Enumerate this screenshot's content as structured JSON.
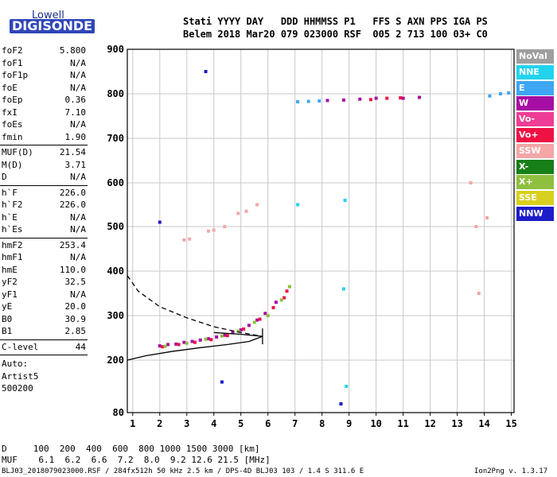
{
  "logo": {
    "top": "Lowell",
    "bottom": "DIGISONDE"
  },
  "header": {
    "line1": "Stati YYYY DAY   DDD HHMMSS P1   FFS S AXN PPS IGA PS",
    "line2": "Belem 2018 Mar20 079 023000 RSF  005 2 713 100 03+ C0"
  },
  "params": {
    "group1": [
      {
        "label": "foF2",
        "value": "5.800"
      },
      {
        "label": "foF1",
        "value": "N/A"
      },
      {
        "label": "foF1p",
        "value": "N/A"
      },
      {
        "label": "foE",
        "value": "N/A"
      },
      {
        "label": "foEp",
        "value": "0.36"
      },
      {
        "label": "fxI",
        "value": "7.10"
      },
      {
        "label": "foEs",
        "value": "N/A"
      },
      {
        "label": "fmin",
        "value": "1.90"
      }
    ],
    "group2": [
      {
        "label": "MUF(D)",
        "value": "21.54"
      },
      {
        "label": "M(D)",
        "value": "3.71"
      },
      {
        "label": "D",
        "value": "N/A"
      }
    ],
    "group3": [
      {
        "label": "h`F",
        "value": "226.0"
      },
      {
        "label": "h`F2",
        "value": "226.0"
      },
      {
        "label": "h`E",
        "value": "N/A"
      },
      {
        "label": "h`Es",
        "value": "N/A"
      }
    ],
    "group4": [
      {
        "label": "hmF2",
        "value": "253.4"
      },
      {
        "label": "hmF1",
        "value": "N/A"
      },
      {
        "label": "hmE",
        "value": "110.0"
      },
      {
        "label": "yF2",
        "value": "32.5"
      },
      {
        "label": "yF1",
        "value": "N/A"
      },
      {
        "label": "yE",
        "value": "20.0"
      },
      {
        "label": "B0",
        "value": "30.9"
      },
      {
        "label": "B1",
        "value": "2.85"
      }
    ],
    "clevel": {
      "label": "C-level",
      "value": "44"
    },
    "auto": [
      "Auto:",
      "Artist5",
      "500200"
    ]
  },
  "legend": [
    {
      "label": "NoVal",
      "color": "#9e9e9e"
    },
    {
      "label": "NNE",
      "color": "#22d3ee"
    },
    {
      "label": "E",
      "color": "#3ea6f2"
    },
    {
      "label": "W",
      "color": "#a60fa3"
    },
    {
      "label": "Vo-",
      "color": "#ee3d96"
    },
    {
      "label": "Vo+",
      "color": "#ee1144"
    },
    {
      "label": "SSW",
      "color": "#f4a6a6"
    },
    {
      "label": "X-",
      "color": "#177f17"
    },
    {
      "label": "X+",
      "color": "#8fbf3f"
    },
    {
      "label": "SSE",
      "color": "#d9cf1e"
    },
    {
      "label": "NNW",
      "color": "#1c1cc9"
    }
  ],
  "footer": {
    "line1": "D     100  200  400  600  800 1000 1500 3000 [km]",
    "line2": "MUF    6.1  6.2  6.6  7.2  8.0  9.2 12.6 21.5 [MHz]",
    "line3": "BLJ03_2018079023000.RSF / 284fx512h 50 kHz 2.5 km / DPS-4D BLJ03 103 / 1.4 S 311.6 E",
    "version": "Ion2Png v. 1.3.17"
  },
  "chart_data": {
    "type": "scatter",
    "xlabel": "",
    "ylabel": "",
    "xlim": [
      0.8,
      15.1
    ],
    "ylim": [
      80,
      900
    ],
    "xticks": [
      1,
      2,
      3,
      4,
      5,
      6,
      7,
      8,
      9,
      10,
      11,
      12,
      13,
      14,
      15
    ],
    "yticks": [
      80,
      200,
      300,
      400,
      500,
      600,
      700,
      800,
      900
    ],
    "grid": true,
    "legend_position": "right",
    "series": [
      {
        "name": "W",
        "values": [
          {
            "x": 2.0,
            "y": 232
          },
          {
            "x": 2.3,
            "y": 235
          },
          {
            "x": 2.6,
            "y": 236
          },
          {
            "x": 2.9,
            "y": 240
          },
          {
            "x": 3.2,
            "y": 242
          },
          {
            "x": 3.5,
            "y": 245
          },
          {
            "x": 3.8,
            "y": 248
          },
          {
            "x": 4.1,
            "y": 252
          },
          {
            "x": 4.4,
            "y": 256
          },
          {
            "x": 4.7,
            "y": 262
          },
          {
            "x": 5.0,
            "y": 268
          },
          {
            "x": 5.3,
            "y": 278
          },
          {
            "x": 5.6,
            "y": 290
          },
          {
            "x": 5.9,
            "y": 305
          },
          {
            "x": 6.3,
            "y": 330
          },
          {
            "x": 8.2,
            "y": 785
          },
          {
            "x": 8.8,
            "y": 786
          },
          {
            "x": 9.4,
            "y": 788
          },
          {
            "x": 10.0,
            "y": 790
          },
          {
            "x": 11.0,
            "y": 790
          },
          {
            "x": 11.6,
            "y": 792
          }
        ]
      },
      {
        "name": "Vo+",
        "values": [
          {
            "x": 2.1,
            "y": 230
          },
          {
            "x": 2.7,
            "y": 235
          },
          {
            "x": 3.3,
            "y": 240
          },
          {
            "x": 3.9,
            "y": 246
          },
          {
            "x": 4.5,
            "y": 255
          },
          {
            "x": 5.1,
            "y": 270
          },
          {
            "x": 5.7,
            "y": 292
          },
          {
            "x": 6.2,
            "y": 318
          },
          {
            "x": 6.6,
            "y": 340
          },
          {
            "x": 6.7,
            "y": 355
          },
          {
            "x": 9.8,
            "y": 787
          },
          {
            "x": 10.4,
            "y": 790
          },
          {
            "x": 10.9,
            "y": 791
          }
        ]
      },
      {
        "name": "X+",
        "values": [
          {
            "x": 2.2,
            "y": 231
          },
          {
            "x": 3.0,
            "y": 238
          },
          {
            "x": 3.7,
            "y": 247
          },
          {
            "x": 4.3,
            "y": 254
          },
          {
            "x": 4.9,
            "y": 265
          },
          {
            "x": 5.5,
            "y": 285
          },
          {
            "x": 6.0,
            "y": 300
          },
          {
            "x": 6.5,
            "y": 335
          },
          {
            "x": 6.8,
            "y": 365
          }
        ]
      },
      {
        "name": "SSW",
        "values": [
          {
            "x": 2.9,
            "y": 470
          },
          {
            "x": 3.1,
            "y": 472
          },
          {
            "x": 3.8,
            "y": 490
          },
          {
            "x": 4.0,
            "y": 492
          },
          {
            "x": 4.4,
            "y": 500
          },
          {
            "x": 4.9,
            "y": 530
          },
          {
            "x": 5.2,
            "y": 535
          },
          {
            "x": 5.6,
            "y": 550
          },
          {
            "x": 13.5,
            "y": 600
          },
          {
            "x": 13.7,
            "y": 500
          },
          {
            "x": 13.8,
            "y": 350
          },
          {
            "x": 14.1,
            "y": 520
          }
        ]
      },
      {
        "name": "E",
        "values": [
          {
            "x": 7.1,
            "y": 782
          },
          {
            "x": 7.5,
            "y": 783
          },
          {
            "x": 7.9,
            "y": 784
          },
          {
            "x": 14.2,
            "y": 795
          },
          {
            "x": 14.6,
            "y": 800
          },
          {
            "x": 14.9,
            "y": 802
          }
        ]
      },
      {
        "name": "NNE",
        "values": [
          {
            "x": 8.8,
            "y": 360
          },
          {
            "x": 8.85,
            "y": 560
          },
          {
            "x": 8.9,
            "y": 140
          },
          {
            "x": 7.1,
            "y": 550
          }
        ]
      },
      {
        "name": "NNW",
        "values": [
          {
            "x": 4.3,
            "y": 150
          },
          {
            "x": 3.7,
            "y": 850
          },
          {
            "x": 2.0,
            "y": 510
          },
          {
            "x": 8.7,
            "y": 100
          }
        ]
      }
    ],
    "curves": [
      {
        "name": "profile-dashed",
        "style": "dashed",
        "points": [
          [
            0.8,
            390
          ],
          [
            1.2,
            355
          ],
          [
            2,
            320
          ],
          [
            3,
            295
          ],
          [
            4,
            275
          ],
          [
            5,
            262
          ],
          [
            5.8,
            253.4
          ]
        ]
      },
      {
        "name": "profile-solid",
        "style": "solid",
        "points": [
          [
            0.8,
            200
          ],
          [
            1.5,
            210
          ],
          [
            2.5,
            220
          ],
          [
            3.5,
            228
          ],
          [
            4.5,
            235
          ],
          [
            5.3,
            242
          ],
          [
            5.8,
            253.4
          ],
          [
            5.0,
            258
          ],
          [
            4.0,
            262
          ]
        ]
      }
    ],
    "markers": [
      {
        "name": "foF2",
        "x": 5.8,
        "y": 253.4
      }
    ]
  }
}
